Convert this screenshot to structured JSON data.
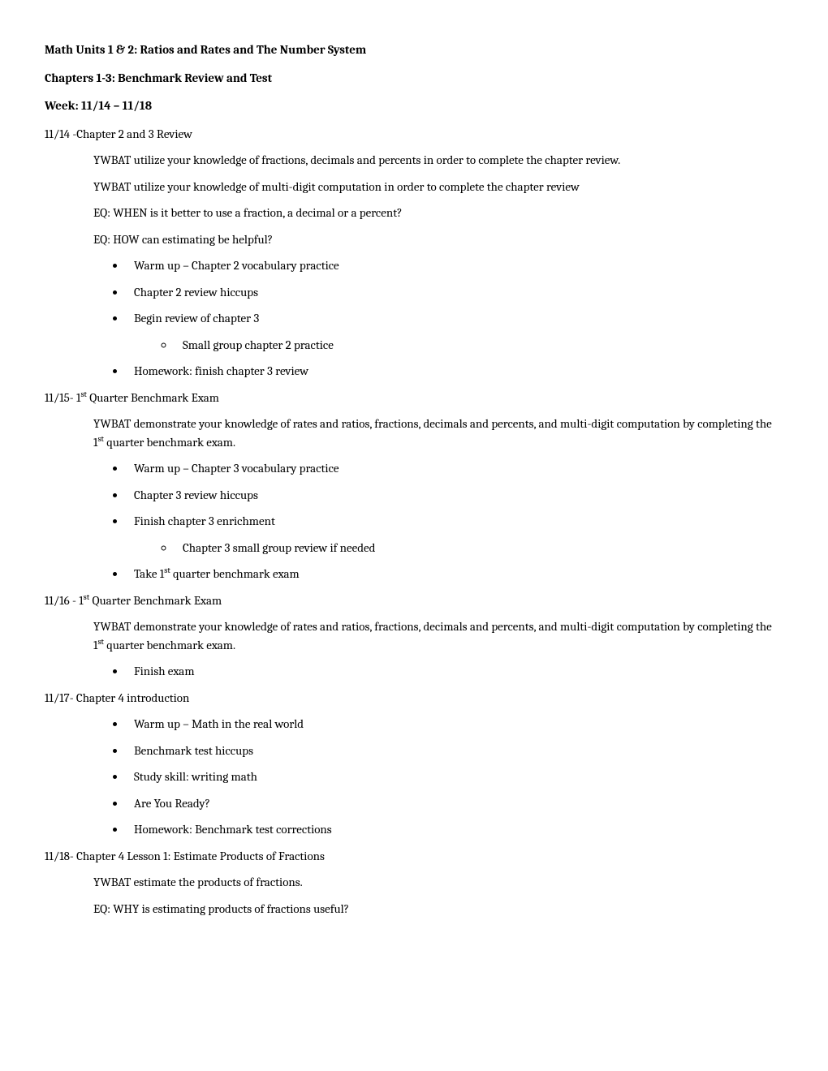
{
  "headers": {
    "h1": "Math Units 1 & 2: Ratios and Rates and The Number System",
    "h2": "Chapters 1-3: Benchmark Review and Test",
    "h3": "Week: 11/14 – 11/18"
  },
  "d1114": {
    "date": "11/14 -Chapter 2 and 3 Review",
    "ywbat1": "YWBAT utilize your knowledge of fractions, decimals and percents in order to complete the chapter review.",
    "ywbat2": "YWBAT utilize your knowledge of multi-digit computation in order to complete the chapter review",
    "eq1": "EQ: WHEN is it better to use a fraction, a decimal or a percent?",
    "eq2": "EQ: HOW can estimating be helpful?",
    "b1": "Warm up – Chapter 2 vocabulary practice",
    "b2": "Chapter 2 review hiccups",
    "b3": "Begin review of chapter 3",
    "b3s1": "Small group chapter 2 practice",
    "b4": "Homework: finish chapter 3 review"
  },
  "d1115": {
    "date_pre": "11/15- 1",
    "date_sup": "st",
    "date_post": " Quarter Benchmark Exam",
    "ywbat_pre": "YWBAT demonstrate your knowledge of rates and ratios, fractions, decimals and percents, and multi-digit computation by completing the 1",
    "ywbat_sup": "st",
    "ywbat_post": " quarter benchmark exam.",
    "b1": "Warm up – Chapter 3 vocabulary practice",
    "b2": "Chapter 3 review hiccups",
    "b3": "Finish chapter 3 enrichment",
    "b3s1": "Chapter 3 small group review if needed",
    "b4_pre": "Take 1",
    "b4_sup": "st",
    "b4_post": " quarter benchmark exam"
  },
  "d1116": {
    "date_pre": "11/16 - 1",
    "date_sup": "st",
    "date_post": " Quarter Benchmark Exam",
    "ywbat_pre": "YWBAT demonstrate your knowledge of rates and ratios, fractions, decimals and percents, and multi-digit computation by completing the 1",
    "ywbat_sup": "st",
    "ywbat_post": " quarter benchmark exam.",
    "b1": "Finish exam"
  },
  "d1117": {
    "date": "11/17- Chapter 4 introduction",
    "b1": "Warm up – Math in the real world",
    "b2": "Benchmark test hiccups",
    "b3": "Study skill: writing math",
    "b4": "Are You Ready?",
    "b5": "Homework: Benchmark test corrections"
  },
  "d1118": {
    "date": "11/18- Chapter 4 Lesson 1: Estimate Products of Fractions",
    "ywbat": "YWBAT estimate the products of fractions.",
    "eq": "EQ: WHY is estimating products of fractions useful?"
  }
}
